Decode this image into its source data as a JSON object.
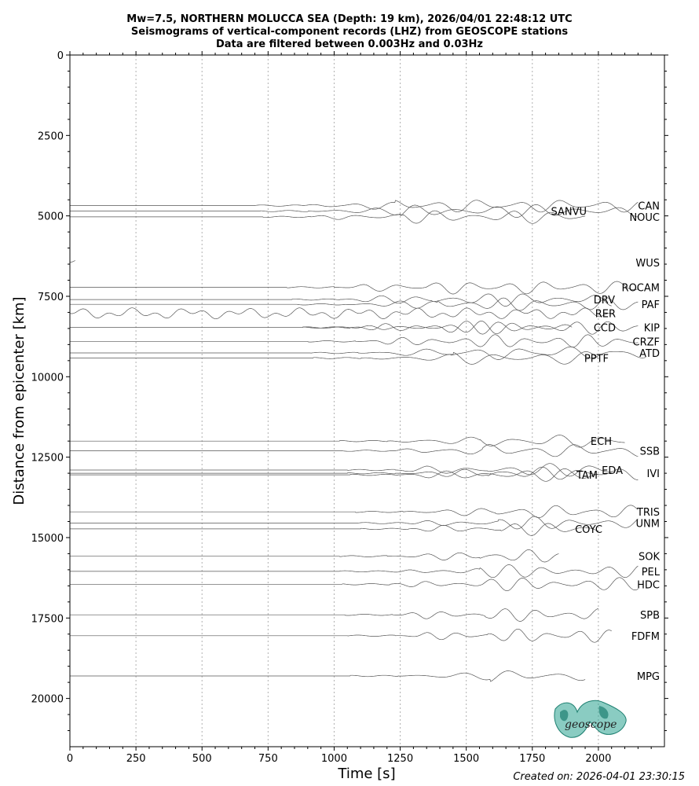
{
  "chart_data": {
    "type": "line",
    "title": [
      "Mw=7.5, NORTHERN MOLUCCA SEA (Depth: 19 km), 2026/04/01 22:48:12 UTC",
      "Seismograms of vertical-component records (LHZ) from GEOSCOPE stations",
      "Data are filtered between 0.003Hz and 0.03Hz"
    ],
    "xlabel": "Time [s]",
    "ylabel": "Distance from epicenter [km]",
    "xlim": [
      0,
      2250
    ],
    "ylim": [
      21500,
      0
    ],
    "xticks": [
      0,
      250,
      500,
      750,
      1000,
      1250,
      1500,
      1750,
      2000
    ],
    "xtick_labels": [
      "0",
      "250",
      "500",
      "750",
      "1000",
      "1250",
      "1500",
      "1750",
      "2000"
    ],
    "yticks": [
      0,
      2500,
      5000,
      7500,
      10000,
      12500,
      15000,
      17500,
      20000
    ],
    "ytick_labels": [
      "0",
      "2500",
      "5000",
      "7500",
      "10000",
      "12500",
      "15000",
      "17500",
      "20000"
    ],
    "grid": "vertical dotted at x ticks",
    "trace_color": "#555555",
    "stations": [
      {
        "name": "CAN",
        "distance": 4680,
        "start": 0,
        "end": 2150,
        "onset": 880
      },
      {
        "name": "SANVU",
        "distance": 4850,
        "start": 0,
        "end": 2150,
        "onset": 900
      },
      {
        "name": "NOUC",
        "distance": 5030,
        "start": 0,
        "end": 1950,
        "onset": 910
      },
      {
        "name": "WUS",
        "distance": 6450,
        "start": 0,
        "end": 20,
        "onset": 0
      },
      {
        "name": "ROCAM",
        "distance": 7220,
        "start": 0,
        "end": 2150,
        "onset": 1000
      },
      {
        "name": "DRV",
        "distance": 7600,
        "start": 0,
        "end": 2050,
        "onset": 1020
      },
      {
        "name": "PAF",
        "distance": 7750,
        "start": 0,
        "end": 2150,
        "onset": 1040
      },
      {
        "name": "RER",
        "distance": 8030,
        "start": 0,
        "end": 2050,
        "onset": 0
      },
      {
        "name": "CCD",
        "distance": 8470,
        "start": 0,
        "end": 1900,
        "onset": 1060
      },
      {
        "name": "KIP",
        "distance": 8470,
        "start": 0,
        "end": 2150,
        "onset": 1060
      },
      {
        "name": "CRZF",
        "distance": 8900,
        "start": 0,
        "end": 2150,
        "onset": 1080
      },
      {
        "name": "ATD",
        "distance": 9260,
        "start": 0,
        "end": 2180,
        "onset": 1090
      },
      {
        "name": "PPTF",
        "distance": 9420,
        "start": 0,
        "end": 2000,
        "onset": 1100
      },
      {
        "name": "ECH",
        "distance": 12000,
        "start": 0,
        "end": 2100,
        "onset": 1200
      },
      {
        "name": "SSB",
        "distance": 12300,
        "start": 0,
        "end": 2150,
        "onset": 1210
      },
      {
        "name": "EDA",
        "distance": 12900,
        "start": 0,
        "end": 2050,
        "onset": 1230
      },
      {
        "name": "TAM",
        "distance": 13050,
        "start": 0,
        "end": 2000,
        "onset": 1240
      },
      {
        "name": "IVI",
        "distance": 13000,
        "start": 0,
        "end": 2150,
        "onset": 1230
      },
      {
        "name": "TRIS",
        "distance": 14200,
        "start": 0,
        "end": 2150,
        "onset": 1260
      },
      {
        "name": "UNM",
        "distance": 14550,
        "start": 0,
        "end": 2150,
        "onset": 1270
      },
      {
        "name": "COYC",
        "distance": 14730,
        "start": 0,
        "end": 2000,
        "onset": 1280
      },
      {
        "name": "SOK",
        "distance": 15580,
        "start": 0,
        "end": 1850,
        "onset": 1200
      },
      {
        "name": "PEL",
        "distance": 16050,
        "start": 0,
        "end": 2150,
        "onset": 1200
      },
      {
        "name": "HDC",
        "distance": 16450,
        "start": 0,
        "end": 2150,
        "onset": 1210
      },
      {
        "name": "SPB",
        "distance": 17400,
        "start": 0,
        "end": 2000,
        "onset": 1220
      },
      {
        "name": "FDFM",
        "distance": 18050,
        "start": 0,
        "end": 2050,
        "onset": 1230
      },
      {
        "name": "MPG",
        "distance": 19300,
        "start": 0,
        "end": 1950,
        "onset": 1240
      }
    ]
  },
  "footer": {
    "created": "Created on: 2026-04-01 23:30:15",
    "logo_text": "geoscope",
    "logo_color": "#2aa390"
  }
}
